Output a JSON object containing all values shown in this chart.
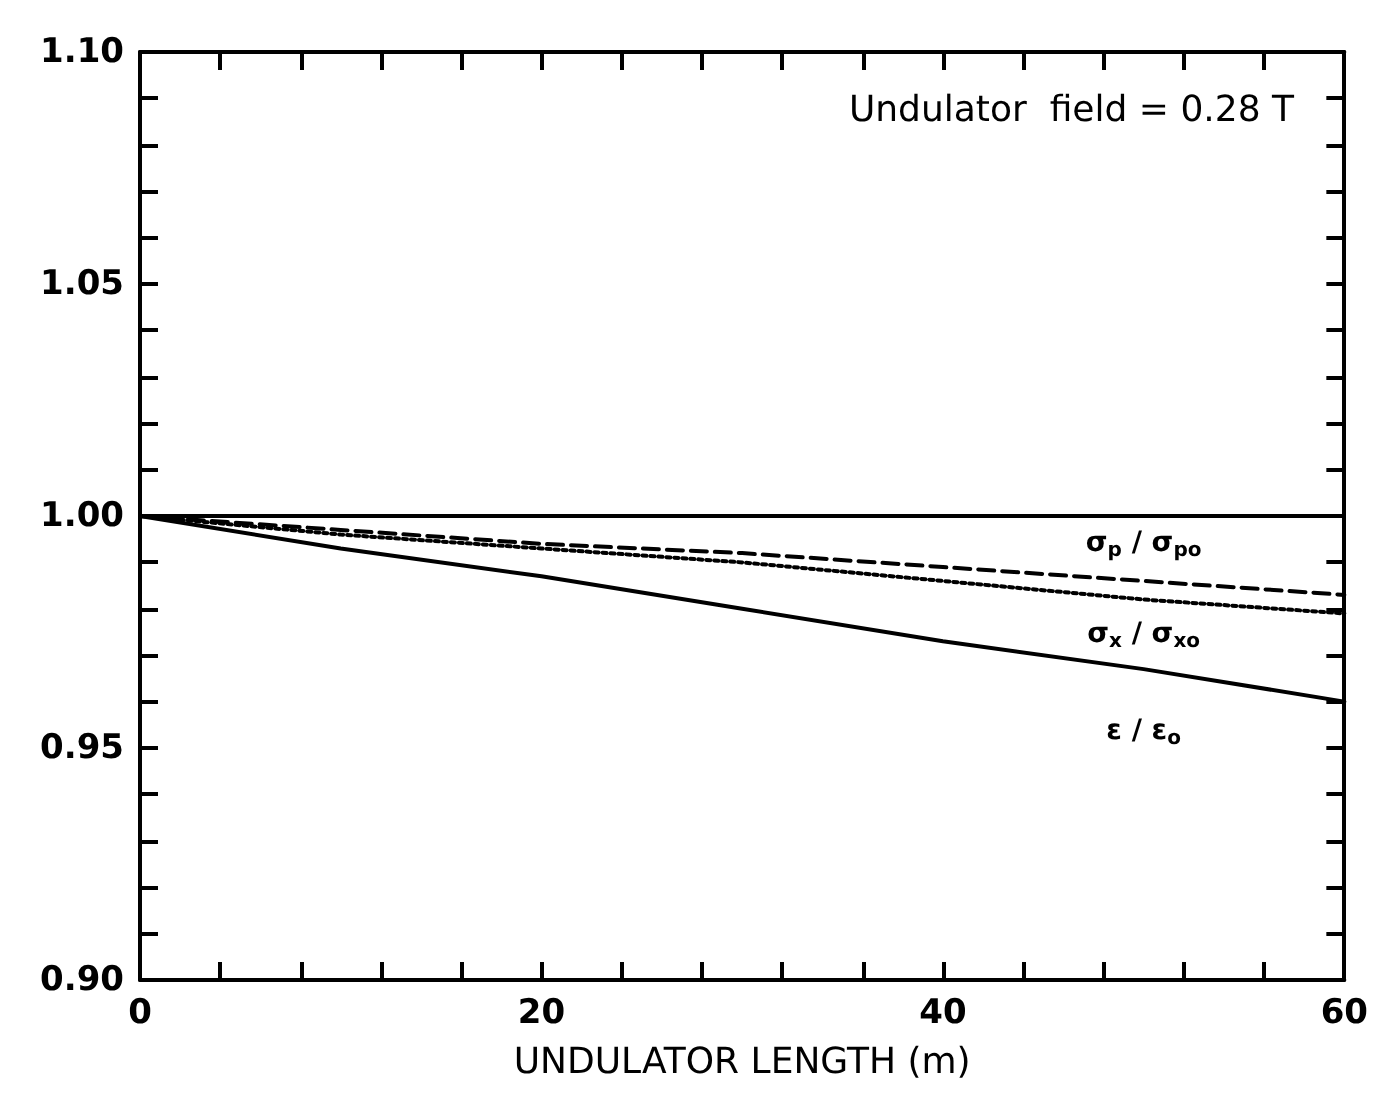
{
  "chart_data": {
    "type": "line",
    "xlabel": "UNDULATOR LENGTH (m)",
    "annotations": [
      "Undulator  field = 0.28 T"
    ],
    "x": [
      0,
      10,
      20,
      30,
      40,
      50,
      60
    ],
    "series": [
      {
        "name": "σ$_{p}$ / σ$_{po}$",
        "color": "#000000",
        "line_style": "dashed",
        "values": [
          1.0,
          0.997,
          0.994,
          0.992,
          0.989,
          0.986,
          0.983
        ]
      },
      {
        "name": "σ$_{x}$ / σ$_{xo}$",
        "color": "#000000",
        "line_style": "dotted",
        "values": [
          1.0,
          0.996,
          0.993,
          0.99,
          0.986,
          0.982,
          0.979
        ]
      },
      {
        "name": "ε / ε$_{o}$",
        "color": "#000000",
        "line_style": "solid",
        "values": [
          1.0,
          0.993,
          0.987,
          0.98,
          0.973,
          0.967,
          0.96
        ]
      }
    ],
    "xlim": [
      0,
      60
    ],
    "xticks": [
      0,
      {
        "value": 4,
        "label": null
      },
      {
        "value": 8,
        "label": null
      },
      {
        "value": 12,
        "label": null
      },
      {
        "value": 16,
        "label": null
      },
      20,
      {
        "value": 24,
        "label": null
      },
      {
        "value": 28,
        "label": null
      },
      {
        "value": 32,
        "label": null
      },
      {
        "value": 36,
        "label": null
      },
      40,
      {
        "value": 44,
        "label": null
      },
      {
        "value": 48,
        "label": null
      },
      {
        "value": 52,
        "label": null
      },
      {
        "value": 56,
        "label": null
      },
      60
    ],
    "ylim": [
      0.9,
      1.1
    ],
    "yticks": [
      {
        "value": 0.9,
        "label": "0.90"
      },
      {
        "value": 0.91,
        "label": null
      },
      {
        "value": 0.92,
        "label": null
      },
      {
        "value": 0.93,
        "label": null
      },
      {
        "value": 0.94,
        "label": null
      },
      {
        "value": 0.95,
        "label": "0.95"
      },
      {
        "value": 0.96,
        "label": null
      },
      {
        "value": 0.97,
        "label": null
      },
      {
        "value": 0.98,
        "label": null
      },
      {
        "value": 0.99,
        "label": null
      },
      {
        "value": 1.0,
        "label": "1.00"
      },
      {
        "value": 1.01,
        "label": null
      },
      {
        "value": 1.02,
        "label": null
      },
      {
        "value": 1.03,
        "label": null
      },
      {
        "value": 1.04,
        "label": null
      },
      {
        "value": 1.05,
        "label": "1.05"
      },
      {
        "value": 1.06,
        "label": null
      },
      {
        "value": 1.07,
        "label": null
      },
      {
        "value": 1.08,
        "label": null
      },
      {
        "value": 1.09,
        "label": null
      },
      {
        "value": 1.1,
        "label": "1.10"
      }
    ],
    "ref_lines": [
      {
        "axis": "y",
        "value": 1.0,
        "color": "#000000",
        "line_style": "solid"
      }
    ],
    "grid": false
  }
}
